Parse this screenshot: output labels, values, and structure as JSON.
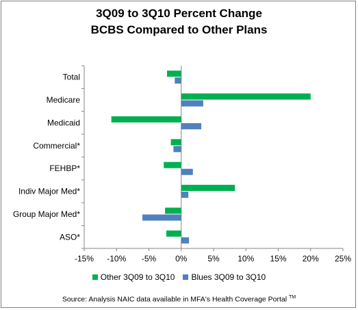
{
  "chart_data": {
    "type": "bar",
    "orientation": "horizontal",
    "title_line1": "3Q09 to 3Q10  Percent Change",
    "title_line2": "BCBS Compared to Other Plans",
    "categories": [
      "Total",
      "Medicare",
      "Medicaid",
      "Commercial*",
      "FEHBP*",
      "Indiv Major Med*",
      "Group Major Med*",
      "ASO*"
    ],
    "series": [
      {
        "name": "Other 3Q09 to 3Q10",
        "color": "#00b050",
        "values": [
          -2.2,
          20.0,
          -10.8,
          -1.6,
          -2.7,
          8.3,
          -2.5,
          -2.3
        ]
      },
      {
        "name": "Blues 3Q09 to 3Q10",
        "color": "#4f81bd",
        "values": [
          -1.0,
          3.4,
          3.1,
          -1.2,
          1.8,
          1.1,
          -6.0,
          1.2
        ]
      }
    ],
    "xlim": [
      -15,
      25
    ],
    "xticks": [
      -15,
      -10,
      -5,
      0,
      5,
      10,
      15,
      20,
      25
    ],
    "xtick_labels": [
      "-15%",
      "-10%",
      "-5%",
      "0%",
      "5%",
      "10%",
      "15%",
      "20%",
      "25%"
    ],
    "grid": false,
    "legend_position": "bottom"
  },
  "source": {
    "text": "Source: Analysis NAIC data available in MFA's Health Coverage Portal",
    "tm": "TM"
  }
}
